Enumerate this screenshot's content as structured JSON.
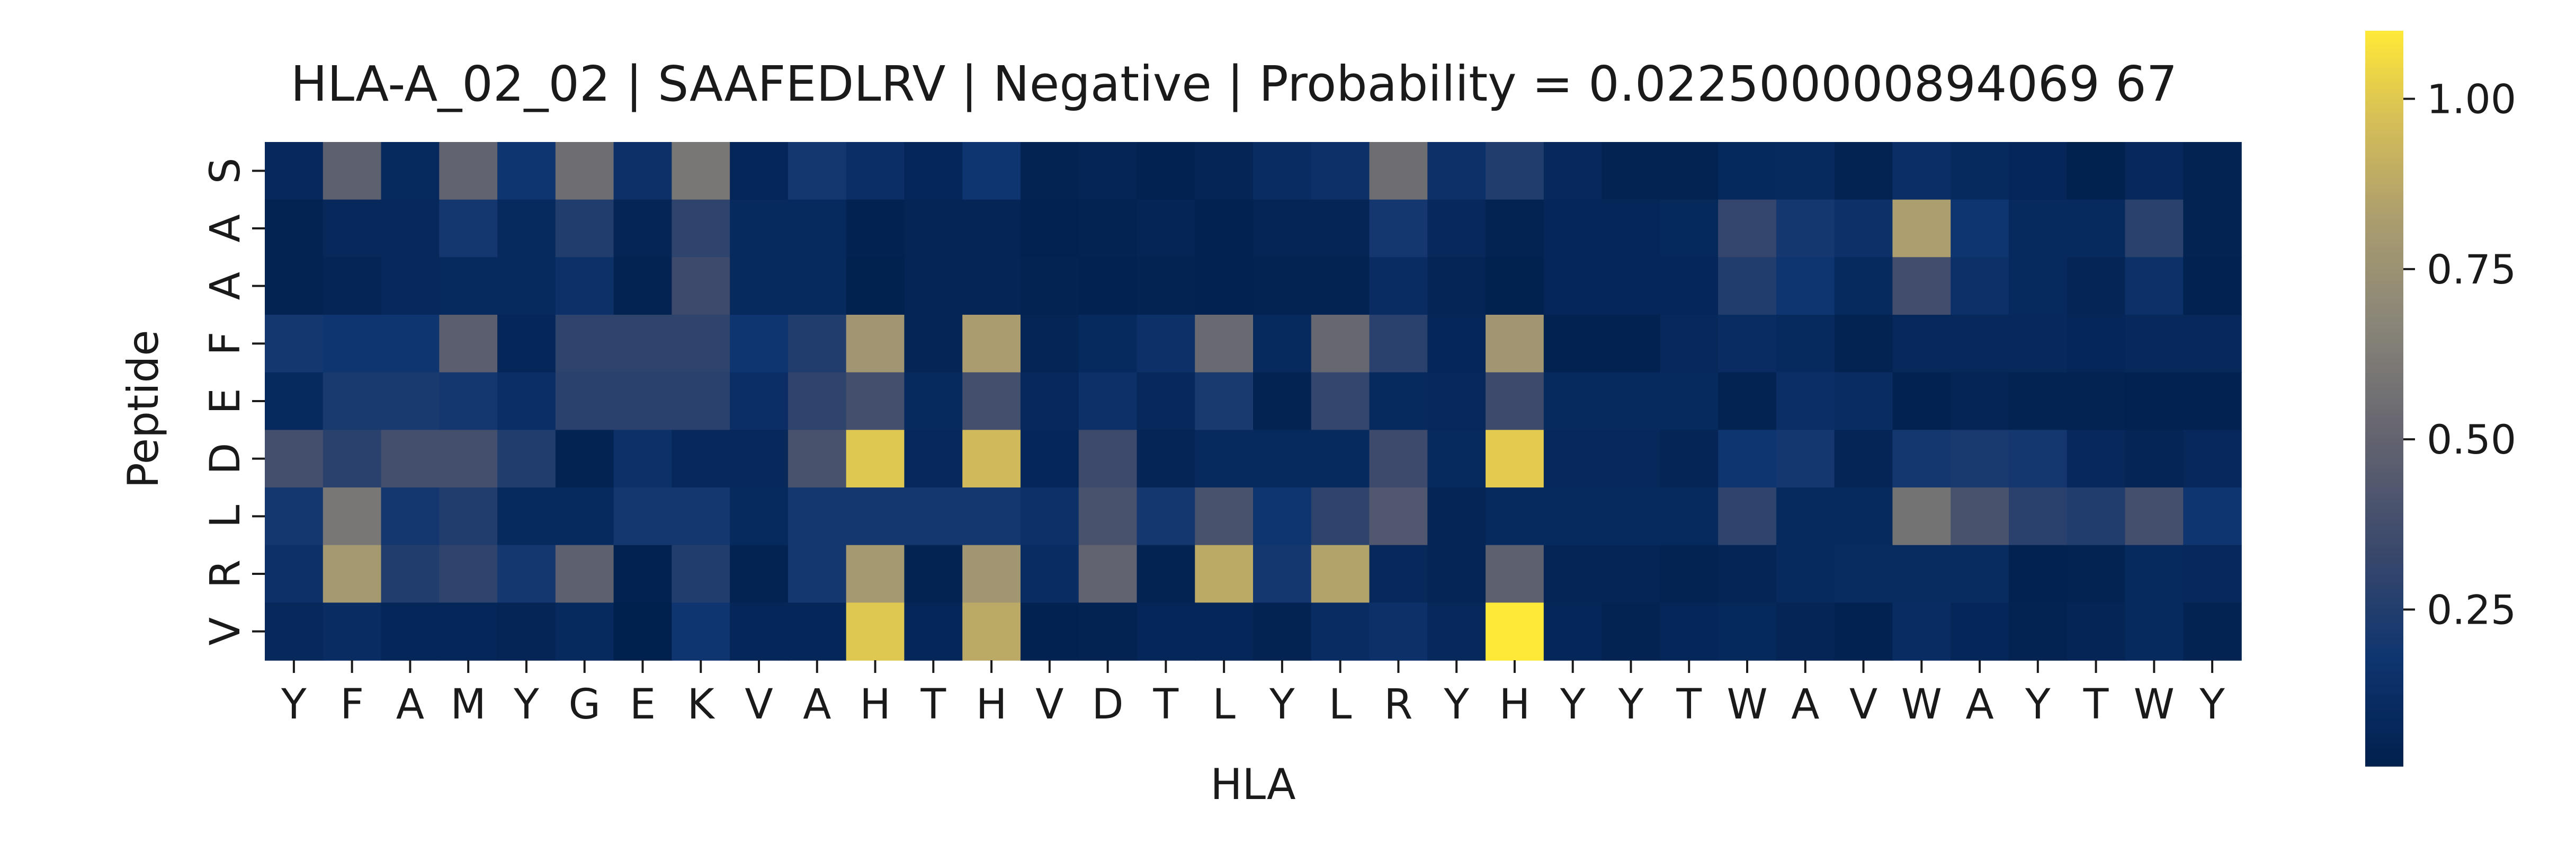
{
  "chart_data": {
    "type": "heatmap",
    "title": "HLA-A_02_02 | SAAFEDLRV | Negative | Probability = 0.022500000894069 67",
    "xlabel": "HLA",
    "ylabel": "Peptide",
    "x_tick_labels": [
      "Y",
      "F",
      "A",
      "M",
      "Y",
      "G",
      "E",
      "K",
      "V",
      "A",
      "H",
      "T",
      "H",
      "V",
      "D",
      "T",
      "L",
      "Y",
      "L",
      "R",
      "Y",
      "H",
      "Y",
      "Y",
      "T",
      "W",
      "A",
      "V",
      "W",
      "A",
      "Y",
      "T",
      "W",
      "Y"
    ],
    "y_tick_labels": [
      "S",
      "A",
      "A",
      "F",
      "E",
      "D",
      "L",
      "R",
      "V"
    ],
    "colormap": "cividis",
    "colorbar": {
      "min": 0.02,
      "max": 1.1,
      "ticks": [
        0.25,
        0.5,
        0.75,
        1.0
      ],
      "tick_labels": [
        "0.25",
        "0.50",
        "0.75",
        "1.00"
      ]
    },
    "values": [
      [
        0.08,
        0.48,
        0.1,
        0.5,
        0.18,
        0.55,
        0.15,
        0.6,
        0.07,
        0.2,
        0.13,
        0.07,
        0.18,
        0.05,
        0.06,
        0.04,
        0.06,
        0.12,
        0.15,
        0.55,
        0.15,
        0.25,
        0.08,
        0.05,
        0.05,
        0.09,
        0.1,
        0.05,
        0.13,
        0.1,
        0.07,
        0.03,
        0.08,
        0.05
      ],
      [
        0.05,
        0.08,
        0.08,
        0.2,
        0.1,
        0.25,
        0.06,
        0.3,
        0.1,
        0.1,
        0.04,
        0.06,
        0.06,
        0.04,
        0.05,
        0.06,
        0.04,
        0.06,
        0.06,
        0.2,
        0.08,
        0.05,
        0.07,
        0.07,
        0.09,
        0.32,
        0.2,
        0.15,
        0.83,
        0.18,
        0.1,
        0.1,
        0.28,
        0.05
      ],
      [
        0.05,
        0.06,
        0.08,
        0.1,
        0.1,
        0.15,
        0.05,
        0.35,
        0.1,
        0.1,
        0.03,
        0.06,
        0.06,
        0.05,
        0.04,
        0.05,
        0.04,
        0.05,
        0.05,
        0.12,
        0.06,
        0.03,
        0.07,
        0.07,
        0.07,
        0.25,
        0.18,
        0.1,
        0.37,
        0.15,
        0.1,
        0.06,
        0.15,
        0.04
      ],
      [
        0.2,
        0.18,
        0.18,
        0.47,
        0.07,
        0.3,
        0.3,
        0.3,
        0.18,
        0.25,
        0.78,
        0.06,
        0.82,
        0.06,
        0.1,
        0.15,
        0.53,
        0.1,
        0.52,
        0.28,
        0.07,
        0.78,
        0.04,
        0.04,
        0.08,
        0.12,
        0.1,
        0.05,
        0.08,
        0.08,
        0.08,
        0.07,
        0.08,
        0.08
      ],
      [
        0.1,
        0.22,
        0.22,
        0.2,
        0.13,
        0.28,
        0.28,
        0.28,
        0.13,
        0.3,
        0.38,
        0.1,
        0.38,
        0.08,
        0.15,
        0.08,
        0.22,
        0.05,
        0.32,
        0.1,
        0.08,
        0.35,
        0.1,
        0.1,
        0.1,
        0.05,
        0.13,
        0.12,
        0.04,
        0.06,
        0.05,
        0.05,
        0.04,
        0.04
      ],
      [
        0.38,
        0.28,
        0.38,
        0.38,
        0.25,
        0.05,
        0.15,
        0.08,
        0.08,
        0.4,
        1.0,
        0.08,
        0.95,
        0.07,
        0.35,
        0.06,
        0.1,
        0.1,
        0.1,
        0.35,
        0.1,
        1.01,
        0.08,
        0.08,
        0.06,
        0.18,
        0.2,
        0.06,
        0.2,
        0.22,
        0.2,
        0.08,
        0.06,
        0.08
      ],
      [
        0.2,
        0.6,
        0.2,
        0.25,
        0.1,
        0.1,
        0.2,
        0.2,
        0.1,
        0.2,
        0.2,
        0.2,
        0.2,
        0.15,
        0.4,
        0.2,
        0.4,
        0.18,
        0.3,
        0.43,
        0.06,
        0.1,
        0.1,
        0.1,
        0.1,
        0.3,
        0.1,
        0.1,
        0.58,
        0.4,
        0.28,
        0.25,
        0.38,
        0.18
      ],
      [
        0.15,
        0.8,
        0.25,
        0.3,
        0.2,
        0.48,
        0.04,
        0.25,
        0.05,
        0.2,
        0.8,
        0.05,
        0.78,
        0.12,
        0.5,
        0.05,
        0.88,
        0.2,
        0.85,
        0.08,
        0.06,
        0.48,
        0.06,
        0.06,
        0.05,
        0.06,
        0.1,
        0.11,
        0.11,
        0.11,
        0.04,
        0.05,
        0.1,
        0.08
      ],
      [
        0.08,
        0.12,
        0.07,
        0.07,
        0.06,
        0.1,
        0.02,
        0.18,
        0.07,
        0.07,
        1.0,
        0.07,
        0.88,
        0.04,
        0.05,
        0.07,
        0.07,
        0.05,
        0.12,
        0.15,
        0.08,
        1.1,
        0.07,
        0.05,
        0.07,
        0.09,
        0.06,
        0.04,
        0.12,
        0.07,
        0.05,
        0.06,
        0.1,
        0.05
      ]
    ]
  }
}
